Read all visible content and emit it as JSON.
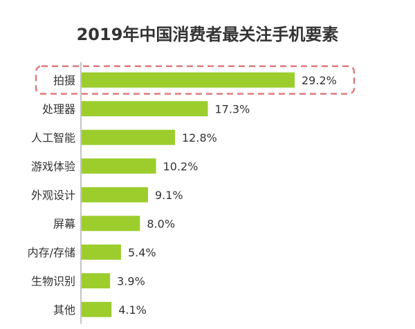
{
  "chart_data": {
    "type": "bar",
    "orientation": "horizontal",
    "title": "2019年中国消费者最关注手机要素",
    "xlabel": "",
    "ylabel": "",
    "categories": [
      "拍摄",
      "处理器",
      "人工智能",
      "游戏体验",
      "外观设计",
      "屏幕",
      "内存/存储",
      "生物识别",
      "其他"
    ],
    "values": [
      29.2,
      17.3,
      12.8,
      10.2,
      9.1,
      8.0,
      5.4,
      3.9,
      4.1
    ],
    "value_labels": [
      "29.2%",
      "17.3%",
      "12.8%",
      "10.2%",
      "9.1%",
      "8.0%",
      "5.4%",
      "3.9%",
      "4.1%"
    ],
    "xlim": [
      0,
      30
    ],
    "grid": false,
    "legend": "none",
    "highlighted_category": "拍摄",
    "colors": {
      "bar": "#9ccd2d",
      "highlight_outline": "#e07a7a",
      "axis": "#888888",
      "text": "#333333"
    }
  }
}
